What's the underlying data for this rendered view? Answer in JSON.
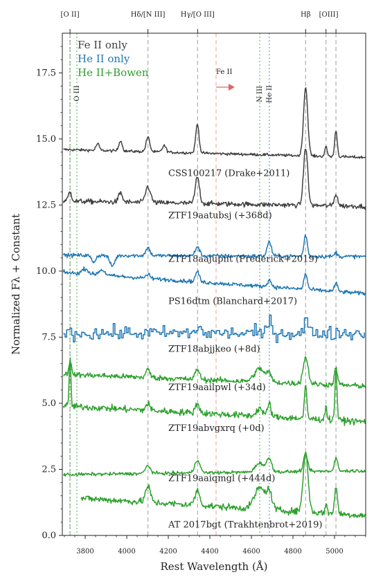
{
  "chart_data": {
    "type": "line",
    "xlabel": "Rest Wavelength (Å)",
    "ylabel": "Normalized Fλ + Constant",
    "xlim": [
      3690,
      5150
    ],
    "ylim": [
      0,
      19
    ],
    "x_ticks": [
      3800,
      4000,
      4200,
      4400,
      4600,
      4800,
      5000
    ],
    "y_ticks": [
      0.0,
      2.5,
      5.0,
      7.5,
      10.0,
      12.5,
      15.0,
      17.5
    ],
    "y_tick_labels": [
      "0.0",
      "2.5",
      "5.0",
      "7.5",
      "10.0",
      "12.5",
      "15.0",
      "17.5"
    ],
    "legend": {
      "placement": "top-left",
      "entries": [
        {
          "label": "Fe II only",
          "color": "#404040"
        },
        {
          "label": "He II only",
          "color": "#1f77b4"
        },
        {
          "label": "He II+Bowen",
          "color": "#2ca02c"
        }
      ]
    },
    "colors": {
      "feii": "#404040",
      "heii": "#1f77b4",
      "bowen": "#2ca02c",
      "red": "#e06666",
      "gray_line": "#b3b3b3"
    },
    "top_lines": [
      {
        "label": "[O II]",
        "x": 3727
      },
      {
        "label": "Hδ/[N III]",
        "x": 4102
      },
      {
        "label": "Hγ/[O III]",
        "x": 4341
      },
      {
        "label": "Hβ",
        "x": 4861
      },
      {
        "label": "[OIII]",
        "x": 4959
      },
      {
        "label": "",
        "x": 5007
      }
    ],
    "other_lines": [
      {
        "label": "O III",
        "x": 3760,
        "color": "#2ca02c"
      },
      {
        "label": "N III",
        "x": 4640,
        "color": "#2ca02c"
      },
      {
        "label": "He II",
        "x": 4686,
        "color": "#1f77b4"
      },
      {
        "label": "",
        "x": 3727,
        "color": "#2ca02c"
      },
      {
        "label": "Fe II",
        "x": 4430,
        "color": "#e06666"
      }
    ],
    "series": [
      {
        "name": "CSS100217 (Drake+2011)",
        "class": "feii",
        "baseline": 14.6,
        "slope": -0.3,
        "noise": 0.05,
        "xmin": 3695,
        "xmax": 5150,
        "step": 3,
        "label_x": 4200,
        "label_y": 13.6,
        "lines": [
          [
            3860,
            0.25,
            8
          ],
          [
            3970,
            0.4,
            8
          ],
          [
            4102,
            0.55,
            9
          ],
          [
            4180,
            0.25,
            9
          ],
          [
            4340,
            1.1,
            8
          ],
          [
            4861,
            2.6,
            10
          ],
          [
            4959,
            0.35,
            6
          ],
          [
            5007,
            1.0,
            6
          ]
        ]
      },
      {
        "name": "ZTF19aatubsj (+368d)",
        "class": "feii",
        "baseline": 12.65,
        "slope": -0.2,
        "noise": 0.09,
        "xmin": 3695,
        "xmax": 5150,
        "step": 3,
        "label_x": 4200,
        "label_y": 12.0,
        "lines": [
          [
            3727,
            0.35,
            8
          ],
          [
            3970,
            0.35,
            9
          ],
          [
            4102,
            0.6,
            12
          ],
          [
            4340,
            1.0,
            10
          ],
          [
            4861,
            2.2,
            10
          ],
          [
            5007,
            0.45,
            8
          ]
        ]
      },
      {
        "name": "ZTF18aajupnt (Frederick+2019)",
        "class": "heii",
        "baseline": 10.6,
        "slope": -0.05,
        "noise": 0.07,
        "xmin": 3695,
        "xmax": 5150,
        "step": 3,
        "label_x": 4200,
        "label_y": 10.35,
        "lines": [
          [
            3840,
            -0.25,
            10
          ],
          [
            3930,
            -0.4,
            12
          ],
          [
            4102,
            0.3,
            10
          ],
          [
            4340,
            0.35,
            10
          ],
          [
            4686,
            0.55,
            10
          ],
          [
            4861,
            0.8,
            8
          ],
          [
            5007,
            0.15,
            6
          ]
        ]
      },
      {
        "name": "PS16dtm (Blanchard+2017)",
        "class": "heii",
        "baseline": 9.95,
        "slope": -0.8,
        "noise": 0.07,
        "xmin": 3695,
        "xmax": 5150,
        "step": 3,
        "label_x": 4200,
        "label_y": 8.75,
        "lines": [
          [
            3800,
            0.2,
            15
          ],
          [
            3880,
            0.2,
            15
          ],
          [
            4102,
            0.15,
            10
          ],
          [
            4340,
            0.4,
            9
          ],
          [
            4686,
            0.25,
            10
          ],
          [
            4861,
            0.6,
            8
          ],
          [
            5007,
            0.3,
            8
          ]
        ]
      },
      {
        "name": "ZTF18abjjkeo (+8d)",
        "class": "heii",
        "baseline": 7.65,
        "slope": 0.0,
        "noise": 0.25,
        "xmin": 3695,
        "xmax": 5150,
        "step": 8,
        "label_x": 4200,
        "label_y": 6.95,
        "lines": [
          [
            4340,
            0.25,
            10
          ],
          [
            4686,
            0.45,
            10
          ],
          [
            4861,
            0.6,
            8
          ]
        ]
      },
      {
        "name": "ZTF19aailpwl (+34d)",
        "class": "bowen",
        "baseline": 6.1,
        "slope": -0.45,
        "noise": 0.1,
        "xmin": 3695,
        "xmax": 5150,
        "step": 3,
        "label_x": 4200,
        "label_y": 5.5,
        "lines": [
          [
            3727,
            0.5,
            6
          ],
          [
            4102,
            0.3,
            10
          ],
          [
            4340,
            0.4,
            10
          ],
          [
            4640,
            0.5,
            25
          ],
          [
            4686,
            0.3,
            10
          ],
          [
            4861,
            1.0,
            12
          ],
          [
            5007,
            0.6,
            8
          ]
        ]
      },
      {
        "name": "ZTF19abvgxrq (+0d)",
        "class": "bowen",
        "baseline": 4.9,
        "slope": -0.6,
        "noise": 0.12,
        "xmin": 3695,
        "xmax": 5150,
        "step": 3,
        "label_x": 4200,
        "label_y": 3.95,
        "lines": [
          [
            3727,
            1.9,
            4
          ],
          [
            4102,
            0.25,
            10
          ],
          [
            4340,
            0.35,
            10
          ],
          [
            4640,
            0.3,
            15
          ],
          [
            4686,
            0.5,
            8
          ],
          [
            4861,
            1.2,
            6
          ],
          [
            4959,
            0.6,
            4
          ],
          [
            5007,
            1.9,
            5
          ]
        ]
      },
      {
        "name": "ZTF19aaiqmgl (+444d)",
        "class": "bowen",
        "baseline": 2.3,
        "slope": 0.15,
        "noise": 0.06,
        "xmin": 3695,
        "xmax": 5150,
        "step": 3,
        "label_x": 4200,
        "label_y": 2.05,
        "lines": [
          [
            4102,
            0.3,
            12
          ],
          [
            4340,
            0.5,
            12
          ],
          [
            4640,
            0.35,
            20
          ],
          [
            4686,
            0.5,
            12
          ],
          [
            4861,
            0.65,
            10
          ],
          [
            5007,
            0.5,
            8
          ]
        ]
      },
      {
        "name": "AT 2017bgt (Trakhtenbrot+2019)",
        "class": "bowen",
        "baseline": 1.45,
        "slope": -0.7,
        "noise": 0.12,
        "xmin": 3780,
        "xmax": 5150,
        "step": 3,
        "label_x": 4200,
        "label_y": 0.3,
        "lines": [
          [
            4102,
            0.6,
            12
          ],
          [
            4340,
            0.55,
            12
          ],
          [
            4640,
            0.8,
            25
          ],
          [
            4686,
            0.6,
            14
          ],
          [
            4861,
            2.2,
            12
          ],
          [
            4959,
            0.35,
            5
          ],
          [
            5007,
            1.0,
            7
          ]
        ]
      }
    ]
  }
}
